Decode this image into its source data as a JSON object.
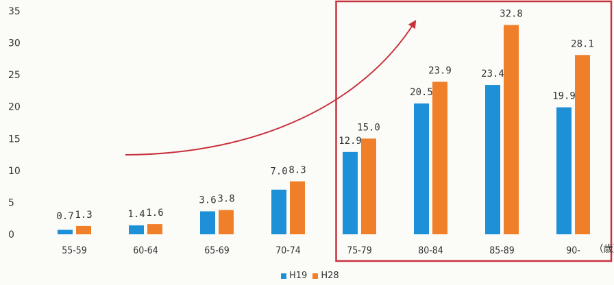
{
  "chart_data": {
    "type": "bar",
    "categories": [
      "55-59",
      "60-64",
      "65-69",
      "70-74",
      "75-79",
      "80-84",
      "85-89",
      "90-"
    ],
    "series": [
      {
        "name": "H19",
        "color": "#1e90d8",
        "values": [
          0.7,
          1.4,
          3.6,
          7.0,
          12.9,
          20.5,
          23.4,
          19.9
        ],
        "labels": [
          "0.7",
          "1.4",
          "3.6",
          "7.0",
          "12.9",
          "20.5",
          "23.4",
          "19.9"
        ]
      },
      {
        "name": "H28",
        "color": "#f07f2a",
        "values": [
          1.3,
          1.6,
          3.8,
          8.3,
          15.0,
          23.9,
          32.8,
          28.1
        ],
        "labels": [
          "1.3",
          "1.6",
          "3.8",
          "8.3",
          "15.0",
          "23.9",
          "32.8",
          "28.1"
        ]
      }
    ],
    "y_ticks": [
      "0",
      "5",
      "10",
      "15",
      "20",
      "25",
      "30",
      "35"
    ],
    "ylim": [
      0,
      35
    ],
    "x_unit": "（歳）",
    "legend_position": "bottom-center",
    "highlight_categories": [
      "75-79",
      "80-84",
      "85-89",
      "90-"
    ],
    "highlight_color": "#c8323c",
    "arrow_color": "#c8323c"
  }
}
